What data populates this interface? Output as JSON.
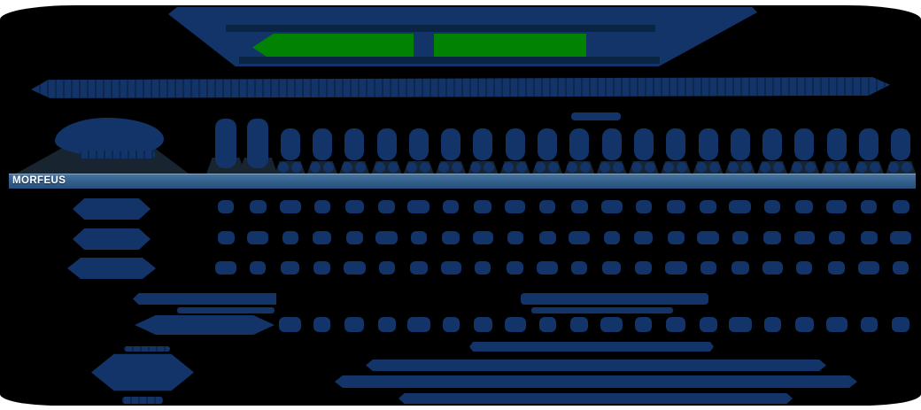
{
  "app": {
    "selected_row_label": "MORFEUS"
  },
  "grid": {
    "column_count": 22,
    "tall_column_count": 2,
    "header_has_day_numbers": true,
    "competitor_row_count": 3,
    "sparse_row_start_column": 2
  },
  "colors": {
    "page_bg": "#ffffff",
    "panel_bg": "#000000",
    "silhouette": "#123468",
    "silhouette_dark": "#0a2444",
    "pedestal": "#18242f",
    "accent_green": "#028202",
    "bar_top_border": "#8ba6c0",
    "bar_grad_start": "#46749f",
    "bar_grad_end": "#26507b",
    "selected_text": "#ffffff"
  }
}
